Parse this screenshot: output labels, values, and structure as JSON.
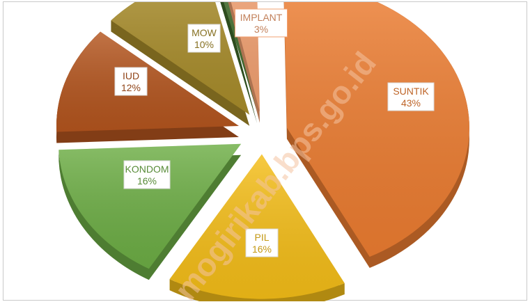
{
  "chart_data": {
    "type": "pie",
    "style": "exploded-3d",
    "slices": [
      {
        "label": "SUNTIK",
        "pct_label": "43%",
        "value": 43,
        "color": "#ED7D31"
      },
      {
        "label": "PIL",
        "pct_label": "16%",
        "value": 16,
        "color": "#F5BE18"
      },
      {
        "label": "KONDOM",
        "pct_label": "16%",
        "value": 16,
        "color": "#6DAE45"
      },
      {
        "label": "IUD",
        "pct_label": "12%",
        "value": 12,
        "color": "#B4551E"
      },
      {
        "label": "MOW",
        "pct_label": "10%",
        "value": 10,
        "color": "#A88C2A"
      },
      {
        "label": "",
        "pct_label": "",
        "value": 0.5,
        "color": "#3E6A2A"
      },
      {
        "label": "IMPLANT",
        "pct_label": "3%",
        "value": 3,
        "color": "#F2A070"
      }
    ],
    "watermark": "mogirikab.bps.go.id"
  }
}
